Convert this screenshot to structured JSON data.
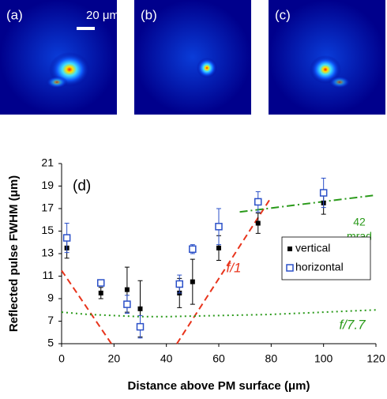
{
  "images": {
    "panels": [
      {
        "label": "(a)"
      },
      {
        "label": "(b)"
      },
      {
        "label": "(c)"
      }
    ],
    "scale_bar": "20 μm"
  },
  "chart_data": {
    "type": "scatter",
    "panel_label": "(d)",
    "x_label": "Distance above PM surface (μm)",
    "y_label": "Reflected pulse FWHM (μm)",
    "xlim": [
      0,
      120
    ],
    "xticks": [
      0,
      20,
      40,
      60,
      80,
      100,
      120
    ],
    "ylim": [
      5,
      21
    ],
    "yticks": [
      5,
      7,
      9,
      11,
      13,
      15,
      17,
      19,
      21
    ],
    "legend_position": "center right",
    "series": [
      {
        "name": "vertical",
        "color": "#000000",
        "marker": "filled-square",
        "x": [
          2,
          15,
          25,
          30,
          45,
          50,
          60,
          75,
          100
        ],
        "values": [
          13.5,
          9.5,
          9.8,
          8.1,
          9.5,
          10.5,
          13.5,
          15.7,
          17.5
        ],
        "errors": [
          0.9,
          0.5,
          2,
          2.5,
          1.3,
          2,
          1.1,
          0.9,
          1
        ]
      },
      {
        "name": "horizontal",
        "color": "#2b50c8",
        "marker": "open-square",
        "x": [
          2,
          15,
          25,
          30,
          45,
          50,
          60,
          75,
          100
        ],
        "values": [
          14.4,
          10.4,
          8.5,
          6.5,
          10.3,
          13.4,
          15.4,
          17.6,
          18.4
        ],
        "errors": [
          1.3,
          0.2,
          0.8,
          1.0,
          0.8,
          0.4,
          1.6,
          0.9,
          1.3
        ]
      }
    ],
    "curves": [
      {
        "label": "f/1",
        "color": "#e8341c",
        "style": "dashed",
        "x": [
          0,
          19,
          30,
          44,
          80
        ],
        "values": [
          11.5,
          5,
          null,
          5,
          18
        ]
      },
      {
        "label": "f/7.7",
        "color": "#2a9a1a",
        "style": "dotted",
        "x": [
          0,
          10,
          20,
          30,
          40,
          50,
          60,
          70,
          80,
          90,
          100,
          110,
          120
        ],
        "values": [
          7.8,
          7.6,
          7.5,
          7.4,
          7.4,
          7.45,
          7.5,
          7.55,
          7.6,
          7.7,
          7.8,
          7.9,
          8.0
        ]
      },
      {
        "label": [
          "42",
          "mrad"
        ],
        "color": "#2a9a1a",
        "style": "dashdot",
        "x": [
          68,
          120
        ],
        "values": [
          16.7,
          18.2
        ]
      }
    ]
  }
}
